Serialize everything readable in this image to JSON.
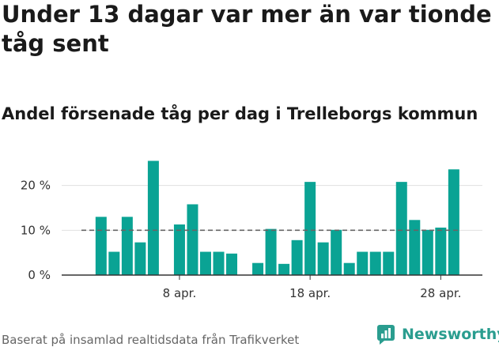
{
  "title": "Under 13 dagar var mer än var tionde tåg sent",
  "subtitle": "Andel försenade tåg per dag i Trelleborgs kommun",
  "source": "Baserat på insamlad realtidsdata från Trafikverket",
  "brand": {
    "name": "Newsworthy",
    "icon": "newsworthy-chart-icon"
  },
  "colors": {
    "bar": "#0aa394",
    "reference_line": "#666666",
    "axis": "#333333",
    "grid": "#e0e0e0",
    "brand": "#2a9d8f"
  },
  "chart_data": {
    "type": "bar",
    "x_unit": "day",
    "days": [
      1,
      2,
      3,
      4,
      5,
      6,
      7,
      8,
      9,
      10,
      11,
      12,
      13,
      14,
      15,
      16,
      17,
      18,
      19,
      20,
      21,
      22,
      23,
      24,
      25,
      26,
      27,
      28,
      29,
      30
    ],
    "values": [
      null,
      13,
      5.2,
      13,
      7.3,
      25.5,
      null,
      11.3,
      15.8,
      5.2,
      5.2,
      4.8,
      null,
      2.7,
      10.3,
      2.5,
      7.8,
      20.8,
      7.3,
      10.1,
      2.7,
      5.2,
      5.2,
      5.2,
      20.8,
      12.3,
      10.1,
      10.6,
      23.6,
      null
    ],
    "reference_value": 10,
    "y_ticks": [
      {
        "value": 0,
        "label": "0 %"
      },
      {
        "value": 10,
        "label": "10 %"
      },
      {
        "value": 20,
        "label": "20 %"
      }
    ],
    "x_ticks": [
      {
        "day": 8,
        "label": "8 apr."
      },
      {
        "day": 18,
        "label": "18 apr."
      },
      {
        "day": 28,
        "label": "28 apr."
      }
    ],
    "ylim": [
      0,
      27
    ],
    "grid": true,
    "legend": "none"
  }
}
